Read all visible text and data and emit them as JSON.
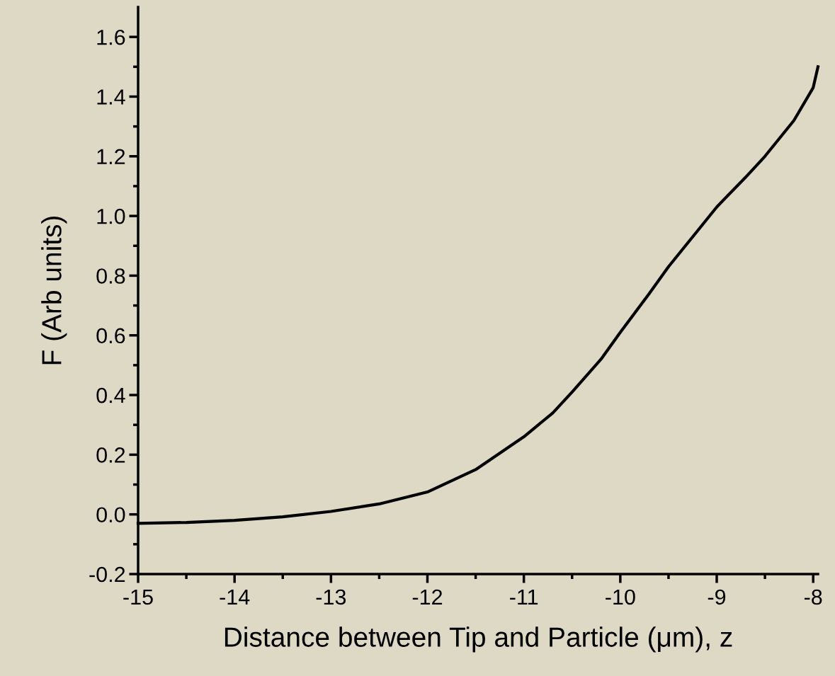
{
  "chart_data": {
    "type": "line",
    "xlabel": "Distance between Tip and Particle (μm), z",
    "ylabel": "F (Arb units)",
    "x": [
      -15,
      -14.5,
      -14,
      -13.5,
      -13,
      -12.5,
      -12,
      -11.5,
      -11,
      -10.7,
      -10.5,
      -10.2,
      -10,
      -9.7,
      -9.5,
      -9.2,
      -9,
      -8.7,
      -8.5,
      -8.2,
      -8,
      -7.95
    ],
    "series": [
      {
        "color": "#000000",
        "values": [
          -0.03,
          -0.027,
          -0.02,
          -0.008,
          0.01,
          0.035,
          0.075,
          0.15,
          0.26,
          0.34,
          0.41,
          0.52,
          0.61,
          0.74,
          0.83,
          0.95,
          1.03,
          1.13,
          1.2,
          1.32,
          1.43,
          1.5
        ]
      }
    ],
    "xlim": [
      -15,
      -7.95
    ],
    "ylim": [
      -0.2,
      1.7
    ],
    "xticks": [
      -15,
      -14,
      -13,
      -12,
      -11,
      -10,
      -9,
      -8
    ],
    "yticks": [
      {
        "value": -0.2,
        "label": "-0.2"
      },
      {
        "value": 0.0,
        "label": "0.0"
      },
      {
        "value": 0.2,
        "label": "0.2"
      },
      {
        "value": 0.4,
        "label": "0.4"
      },
      {
        "value": 0.6,
        "label": "0.6"
      },
      {
        "value": 0.8,
        "label": "0.8"
      },
      {
        "value": 1.0,
        "label": "1.0"
      },
      {
        "value": 1.2,
        "label": "1.2"
      },
      {
        "value": 1.4,
        "label": "1.4"
      },
      {
        "value": 1.6,
        "label": "1.6"
      }
    ],
    "grid": false,
    "legend": false,
    "marker": "none",
    "line_style": "solid"
  }
}
